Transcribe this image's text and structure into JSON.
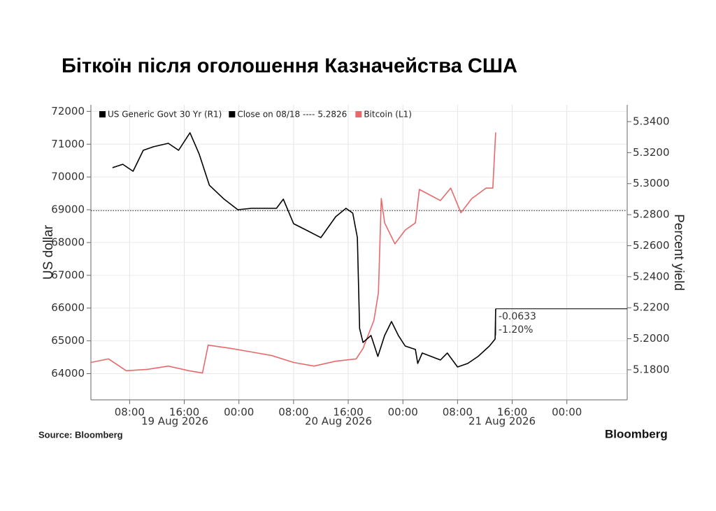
{
  "chart_data": {
    "type": "line",
    "title": "Біткоїн після оголошення Казначейства США",
    "ylabel": "US dollar",
    "y2label": "Percent yield",
    "source": "Source: Bloomberg",
    "brand": "Bloomberg",
    "xlim": [
      "2026-08-19T02:20",
      "2026-08-22T08:50"
    ],
    "xticks": [
      {
        "value": "2026-08-19T08:00",
        "label": "08:00"
      },
      {
        "value": "2026-08-19T16:00",
        "label": "16:00"
      },
      {
        "value": "2026-08-20T00:00",
        "label": "00:00"
      },
      {
        "value": "2026-08-20T08:00",
        "label": "08:00"
      },
      {
        "value": "2026-08-20T16:00",
        "label": "16:00"
      },
      {
        "value": "2026-08-21T00:00",
        "label": "00:00"
      },
      {
        "value": "2026-08-21T08:00",
        "label": "08:00"
      },
      {
        "value": "2026-08-21T16:00",
        "label": "16:00"
      },
      {
        "value": "2026-08-22T00:00",
        "label": "00:00"
      }
    ],
    "date_labels": [
      "19 Aug 2026",
      "20 Aug 2026",
      "21 Aug 2026"
    ],
    "ylim": [
      63200,
      72200
    ],
    "yticks": [
      64000,
      65000,
      66000,
      67000,
      68000,
      69000,
      70000,
      71000,
      72000
    ],
    "y2lim": [
      5.1606,
      5.3508
    ],
    "y2ticks": [
      {
        "value": 5.18,
        "label": "5.1800"
      },
      {
        "value": 5.2,
        "label": "5.2000"
      },
      {
        "value": 5.22,
        "label": "5.2200"
      },
      {
        "value": 5.24,
        "label": "5.2400"
      },
      {
        "value": 5.26,
        "label": "5.2600"
      },
      {
        "value": 5.28,
        "label": "5.2800"
      },
      {
        "value": 5.3,
        "label": "5.3000"
      },
      {
        "value": 5.32,
        "label": "5.3200"
      },
      {
        "value": 5.34,
        "label": "5.3400"
      }
    ],
    "grid": true,
    "close_line": {
      "name": "Close on 08/18 ----",
      "value": 5.2826,
      "axis": "y2"
    },
    "annotations": [
      "-0.0633",
      "-1.20%"
    ],
    "series": [
      {
        "name": "US Generic Govt 30 Yr (R1)",
        "color": "#000000",
        "axis": "y2",
        "x": [
          "2026-08-19T05:30",
          "2026-08-19T07:00",
          "2026-08-19T08:30",
          "2026-08-19T10:00",
          "2026-08-19T11:30",
          "2026-08-19T13:40",
          "2026-08-19T15:10",
          "2026-08-19T16:50",
          "2026-08-19T18:10",
          "2026-08-19T19:40",
          "2026-08-19T21:50",
          "2026-08-19T23:50",
          "2026-08-20T01:50",
          "2026-08-20T05:30",
          "2026-08-20T06:30",
          "2026-08-20T08:00",
          "2026-08-20T10:00",
          "2026-08-20T12:00",
          "2026-08-20T14:10",
          "2026-08-20T15:40",
          "2026-08-20T16:40",
          "2026-08-20T17:20",
          "2026-08-20T17:40",
          "2026-08-20T18:10",
          "2026-08-20T19:20",
          "2026-08-20T20:20",
          "2026-08-20T21:20",
          "2026-08-20T22:20",
          "2026-08-20T23:20",
          "2026-08-21T00:20",
          "2026-08-21T01:50",
          "2026-08-21T02:10",
          "2026-08-21T02:50",
          "2026-08-21T05:30",
          "2026-08-21T06:30",
          "2026-08-21T08:00",
          "2026-08-21T09:30",
          "2026-08-21T11:00",
          "2026-08-21T12:40",
          "2026-08-21T13:30",
          "2026-08-21T13:35"
        ],
        "values": [
          5.3103,
          5.3125,
          5.308,
          5.3215,
          5.3238,
          5.326,
          5.3215,
          5.3328,
          5.3193,
          5.299,
          5.29,
          5.2832,
          5.2841,
          5.2841,
          5.29,
          5.2742,
          5.2697,
          5.2652,
          5.2787,
          5.2841,
          5.281,
          5.2652,
          5.2066,
          5.1976,
          5.2021,
          5.1886,
          5.2021,
          5.2111,
          5.2021,
          5.1953,
          5.1931,
          5.1841,
          5.1908,
          5.1863,
          5.1908,
          5.1818,
          5.1841,
          5.1886,
          5.1953,
          5.1998,
          5.2193
        ]
      },
      {
        "name": "Bitcoin (L1)",
        "color": "#e8696b",
        "axis": "y",
        "x": [
          "2026-08-19T02:20",
          "2026-08-19T04:55",
          "2026-08-19T07:30",
          "2026-08-19T10:35",
          "2026-08-19T13:40",
          "2026-08-19T16:40",
          "2026-08-19T18:40",
          "2026-08-19T19:30",
          "2026-08-19T22:50",
          "2026-08-20T01:50",
          "2026-08-20T04:50",
          "2026-08-20T08:00",
          "2026-08-20T11:00",
          "2026-08-20T14:10",
          "2026-08-20T17:10",
          "2026-08-20T18:10",
          "2026-08-20T19:45",
          "2026-08-20T20:25",
          "2026-08-20T20:50",
          "2026-08-20T21:20",
          "2026-08-20T22:50",
          "2026-08-21T00:20",
          "2026-08-21T01:50",
          "2026-08-21T02:25",
          "2026-08-21T05:30",
          "2026-08-21T07:00",
          "2026-08-21T08:30",
          "2026-08-21T10:05",
          "2026-08-21T12:10",
          "2026-08-21T13:10",
          "2026-08-21T13:35"
        ],
        "values": [
          64340,
          64450,
          64090,
          64130,
          64230,
          64090,
          64020,
          64870,
          64770,
          64660,
          64550,
          64340,
          64230,
          64380,
          64450,
          64770,
          65620,
          66470,
          69340,
          68600,
          67960,
          68380,
          68600,
          69620,
          69280,
          69660,
          68910,
          69340,
          69660,
          69660,
          71360
        ]
      }
    ]
  }
}
